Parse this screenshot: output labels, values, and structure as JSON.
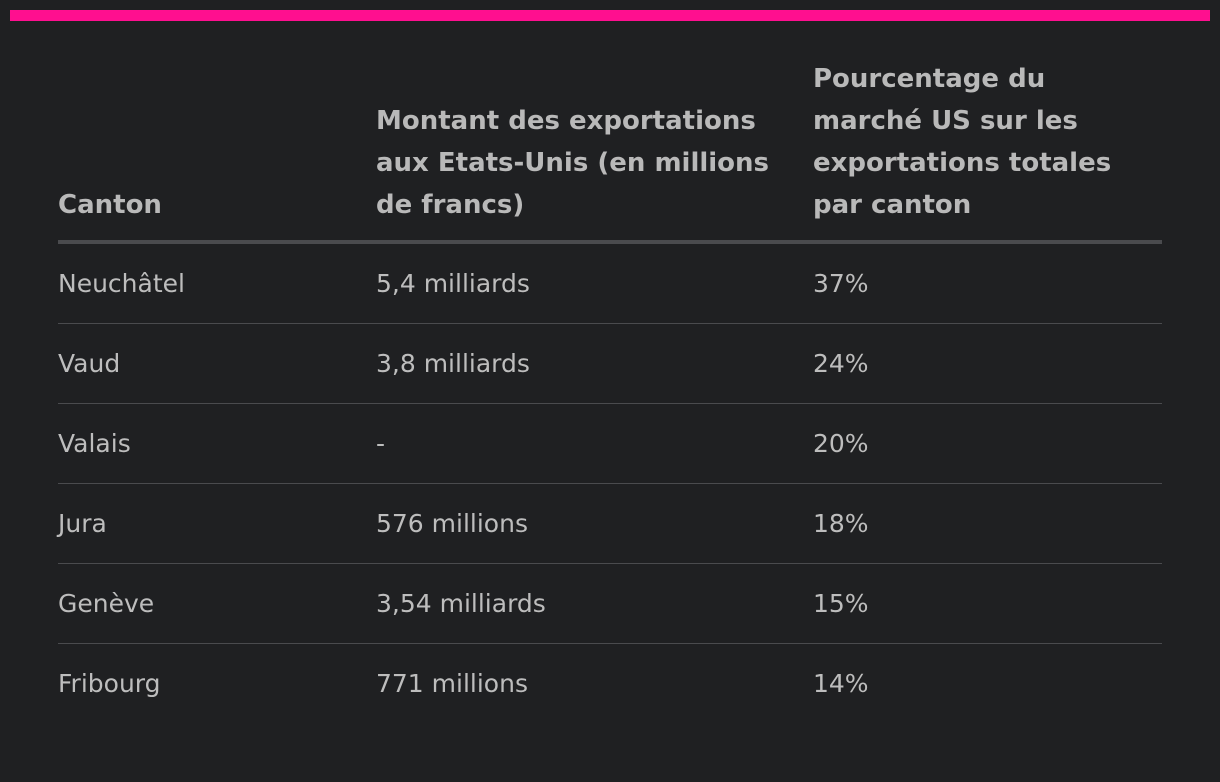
{
  "colors": {
    "accent": "#ff0f8f",
    "background": "#1f2022",
    "text": "#bdbdbd",
    "divider": "#4a4b4e"
  },
  "table": {
    "headers": [
      "Canton",
      "Montant des exportations aux Etats-Unis (en millions de francs)",
      "Pourcentage du marché US sur les exportations totales par canton"
    ],
    "rows": [
      [
        "Neuchâtel",
        "5,4 milliards",
        "37%"
      ],
      [
        "Vaud",
        "3,8 milliards",
        "24%"
      ],
      [
        "Valais",
        "-",
        "20%"
      ],
      [
        "Jura",
        "576 millions",
        "18%"
      ],
      [
        "Genève",
        "3,54 milliards",
        "15%"
      ],
      [
        "Fribourg",
        "771 millions",
        "14%"
      ]
    ]
  }
}
